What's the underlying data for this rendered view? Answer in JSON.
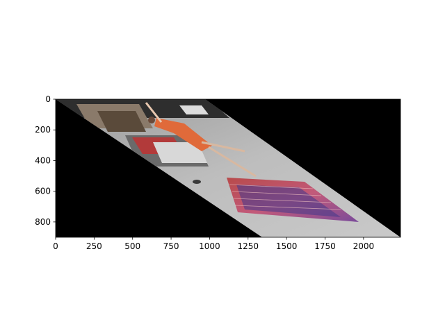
{
  "colors": {
    "background": "#ffffff",
    "image_fill": "#000000",
    "axis": "#000000"
  },
  "axes": {
    "x_range": [
      0,
      2240
    ],
    "y_range": [
      900,
      0
    ],
    "x_ticks": [
      0,
      250,
      500,
      750,
      1000,
      1250,
      1500,
      1750,
      2000
    ],
    "y_ticks": [
      0,
      200,
      400,
      600,
      800
    ]
  },
  "image": {
    "description_type": "sheared photo: street scene with a person jumping over a 3D chalk-art brick hole on a sidewalk, flower planter at left"
  }
}
